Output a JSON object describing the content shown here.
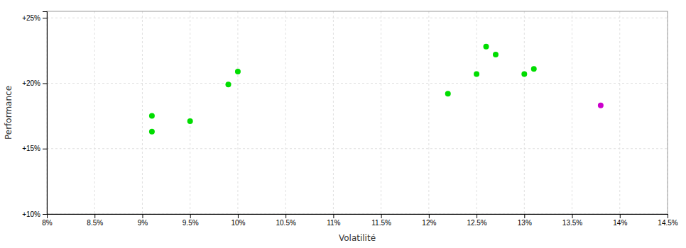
{
  "chart_data": {
    "type": "scatter",
    "xlabel": "Volatilité",
    "ylabel": "Performance",
    "xlim": [
      0.08,
      0.145
    ],
    "ylim": [
      0.1,
      0.255
    ],
    "xticks": [
      {
        "value": 0.08,
        "label": "8%"
      },
      {
        "value": 0.085,
        "label": "8.5%"
      },
      {
        "value": 0.09,
        "label": "9%"
      },
      {
        "value": 0.095,
        "label": "9.5%"
      },
      {
        "value": 0.1,
        "label": "10%"
      },
      {
        "value": 0.105,
        "label": "10.5%"
      },
      {
        "value": 0.11,
        "label": "11%"
      },
      {
        "value": 0.115,
        "label": "11.5%"
      },
      {
        "value": 0.12,
        "label": "12%"
      },
      {
        "value": 0.125,
        "label": "12.5%"
      },
      {
        "value": 0.13,
        "label": "13%"
      },
      {
        "value": 0.135,
        "label": "13.5%"
      },
      {
        "value": 0.14,
        "label": "14%"
      },
      {
        "value": 0.145,
        "label": "14.5%"
      }
    ],
    "yticks": [
      {
        "value": 0.1,
        "label": "+10%"
      },
      {
        "value": 0.15,
        "label": "+15%"
      },
      {
        "value": 0.2,
        "label": "+20%"
      },
      {
        "value": 0.25,
        "label": "+25%"
      }
    ],
    "grid": true,
    "series": [
      {
        "color": "#00dd00",
        "x": [
          0.091,
          0.091,
          0.095,
          0.099,
          0.1,
          0.122,
          0.125,
          0.126,
          0.127,
          0.13,
          0.131
        ],
        "values": [
          0.175,
          0.163,
          0.171,
          0.199,
          0.209,
          0.192,
          0.207,
          0.228,
          0.222,
          0.207,
          0.211
        ]
      },
      {
        "color": "#cc00cc",
        "x": [
          0.138
        ],
        "values": [
          0.183
        ]
      }
    ]
  }
}
